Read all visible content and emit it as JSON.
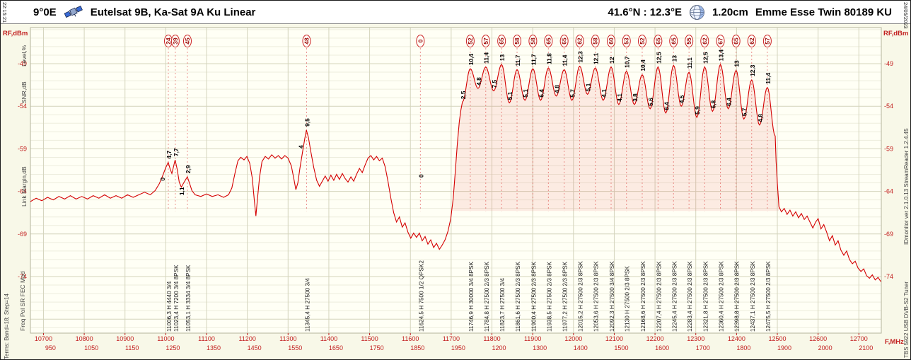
{
  "header": {
    "time": "22:15:21",
    "date": "24/05/2023",
    "orbital_position": "9°0E",
    "satellite_name": "Eutelsat 9B, Ka-Sat 9A Ku Linear",
    "site_coords": "41.6°N : 12.3°E",
    "dish_size": "1.20cm",
    "lnb_name": "Emme Esse Twin 80189 KU"
  },
  "side_labels": {
    "level_label": "Level,%",
    "snr_label": "SNR,dB",
    "margin_label": "Link Margin,dB",
    "row_legend": "Freq   Pol   SR   FEC   Mod",
    "terms": "Terms: Band=18; Step=14",
    "tuner": "TBS 5922 USB DVB-S2 Tuner",
    "app_version": "IDmonitor  ver 2.1.0.13   StreamReader 1.2.4.45"
  },
  "chart_data": {
    "type": "line",
    "title": "Satellite RF spectrum scan",
    "xlabel": "F,MHz",
    "ylabel": "RF,dBm",
    "xlim": [
      10668,
      12755
    ],
    "ylim": [
      -80,
      -45
    ],
    "y_ticks": [
      -49,
      -54,
      -59,
      -64,
      -69,
      -74
    ],
    "x_ticks_freq": [
      10700,
      10800,
      10900,
      11000,
      11100,
      11200,
      11300,
      11400,
      11500,
      11600,
      11700,
      11800,
      11900,
      12000,
      12100,
      12200,
      12300,
      12400,
      12500,
      12600,
      12700
    ],
    "x_ticks_if": [
      950,
      1050,
      1150,
      1250,
      1350,
      1450,
      1550,
      1650,
      1750,
      1850,
      1950,
      1200,
      1300,
      1400,
      1500,
      1600,
      1700,
      1800,
      1900,
      2000,
      2100
    ],
    "band_right_valley_dbm": -57.5,
    "baseline_trace": [
      [
        10668,
        -65.2
      ],
      [
        10682,
        -64.8
      ],
      [
        10696,
        -65.1
      ],
      [
        10710,
        -64.7
      ],
      [
        10724,
        -65.0
      ],
      [
        10738,
        -64.6
      ],
      [
        10752,
        -64.9
      ],
      [
        10766,
        -64.5
      ],
      [
        10780,
        -64.9
      ],
      [
        10794,
        -64.6
      ],
      [
        10808,
        -64.9
      ],
      [
        10822,
        -64.5
      ],
      [
        10836,
        -64.8
      ],
      [
        10850,
        -64.4
      ],
      [
        10864,
        -64.8
      ],
      [
        10878,
        -64.5
      ],
      [
        10892,
        -64.8
      ],
      [
        10906,
        -64.4
      ],
      [
        10920,
        -64.7
      ],
      [
        10934,
        -64.4
      ],
      [
        10948,
        -64.1
      ],
      [
        10962,
        -64.4
      ],
      [
        10974,
        -63.9
      ],
      [
        10984,
        -63.1
      ],
      [
        10993,
        -62.1
      ],
      [
        11000,
        -61.2
      ],
      [
        11006,
        -60.6
      ],
      [
        11011,
        -61.4
      ],
      [
        11015,
        -61.9
      ],
      [
        11019,
        -61.1
      ],
      [
        11023,
        -60.3
      ],
      [
        11028,
        -61.4
      ],
      [
        11033,
        -62.9
      ],
      [
        11038,
        -63.5
      ],
      [
        11044,
        -63.0
      ],
      [
        11049,
        -62.6
      ],
      [
        11053,
        -62.3
      ],
      [
        11058,
        -63.0
      ],
      [
        11064,
        -63.9
      ],
      [
        11072,
        -64.4
      ],
      [
        11086,
        -64.6
      ],
      [
        11100,
        -64.3
      ],
      [
        11114,
        -64.6
      ],
      [
        11128,
        -64.4
      ],
      [
        11142,
        -64.7
      ],
      [
        11154,
        -64.4
      ],
      [
        11162,
        -63.6
      ],
      [
        11170,
        -61.8
      ],
      [
        11177,
        -60.4
      ],
      [
        11184,
        -60.0
      ],
      [
        11192,
        -60.3
      ],
      [
        11199,
        -59.9
      ],
      [
        11206,
        -60.7
      ],
      [
        11212,
        -62.4
      ],
      [
        11217,
        -65.0
      ],
      [
        11221,
        -66.9
      ],
      [
        11225,
        -64.8
      ],
      [
        11230,
        -62.3
      ],
      [
        11236,
        -60.5
      ],
      [
        11244,
        -59.9
      ],
      [
        11252,
        -60.2
      ],
      [
        11260,
        -59.7
      ],
      [
        11268,
        -60.1
      ],
      [
        11276,
        -59.8
      ],
      [
        11284,
        -60.2
      ],
      [
        11292,
        -59.8
      ],
      [
        11300,
        -60.1
      ],
      [
        11308,
        -61.0
      ],
      [
        11314,
        -62.5
      ],
      [
        11319,
        -63.8
      ],
      [
        11324,
        -63.0
      ],
      [
        11329,
        -61.3
      ],
      [
        11335,
        -59.5
      ],
      [
        11341,
        -57.8
      ],
      [
        11345,
        -56.8
      ],
      [
        11350,
        -57.7
      ],
      [
        11356,
        -59.4
      ],
      [
        11363,
        -61.2
      ],
      [
        11370,
        -62.7
      ],
      [
        11377,
        -63.4
      ],
      [
        11384,
        -62.8
      ],
      [
        11391,
        -62.2
      ],
      [
        11398,
        -62.8
      ],
      [
        11405,
        -62.1
      ],
      [
        11412,
        -62.7
      ],
      [
        11419,
        -62.0
      ],
      [
        11426,
        -62.6
      ],
      [
        11433,
        -61.9
      ],
      [
        11440,
        -62.5
      ],
      [
        11447,
        -62.9
      ],
      [
        11454,
        -62.3
      ],
      [
        11461,
        -62.8
      ],
      [
        11468,
        -62.0
      ],
      [
        11475,
        -61.3
      ],
      [
        11482,
        -61.8
      ],
      [
        11489,
        -60.9
      ],
      [
        11496,
        -60.1
      ],
      [
        11503,
        -59.8
      ],
      [
        11510,
        -60.3
      ],
      [
        11517,
        -59.9
      ],
      [
        11524,
        -60.4
      ],
      [
        11531,
        -60.1
      ],
      [
        11538,
        -61.1
      ],
      [
        11545,
        -62.8
      ],
      [
        11552,
        -64.8
      ],
      [
        11559,
        -66.5
      ],
      [
        11566,
        -67.6
      ],
      [
        11573,
        -67.0
      ],
      [
        11580,
        -68.2
      ],
      [
        11587,
        -67.7
      ],
      [
        11594,
        -68.8
      ],
      [
        11601,
        -69.5
      ],
      [
        11608,
        -68.9
      ],
      [
        11615,
        -69.4
      ],
      [
        11622,
        -68.9
      ],
      [
        11629,
        -69.8
      ],
      [
        11636,
        -69.3
      ],
      [
        11643,
        -70.2
      ],
      [
        11650,
        -69.7
      ],
      [
        11657,
        -70.6
      ],
      [
        11664,
        -70.1
      ],
      [
        11671,
        -70.8
      ],
      [
        11678,
        -70.3
      ],
      [
        11685,
        -69.7
      ],
      [
        11692,
        -68.7
      ],
      [
        11699,
        -67.2
      ],
      [
        11705,
        -64.8
      ],
      [
        11710,
        -61.8
      ],
      [
        11715,
        -58.5
      ],
      [
        11720,
        -55.8
      ],
      [
        11724,
        -54.4
      ]
    ],
    "tail_trace": [
      [
        12497,
        -60.5
      ],
      [
        12500,
        -63.0
      ],
      [
        12504,
        -65.8
      ],
      [
        12510,
        -66.4
      ],
      [
        12517,
        -66.0
      ],
      [
        12524,
        -66.7
      ],
      [
        12531,
        -66.2
      ],
      [
        12538,
        -66.9
      ],
      [
        12545,
        -66.4
      ],
      [
        12552,
        -67.1
      ],
      [
        12559,
        -66.6
      ],
      [
        12566,
        -67.3
      ],
      [
        12573,
        -66.9
      ],
      [
        12580,
        -67.6
      ],
      [
        12587,
        -68.3
      ],
      [
        12594,
        -67.6
      ],
      [
        12600,
        -67.2
      ],
      [
        12607,
        -68.4
      ],
      [
        12614,
        -67.9
      ],
      [
        12621,
        -68.8
      ],
      [
        12628,
        -69.8
      ],
      [
        12635,
        -69.2
      ],
      [
        12642,
        -70.3
      ],
      [
        12649,
        -69.8
      ],
      [
        12656,
        -70.9
      ],
      [
        12663,
        -71.5
      ],
      [
        12670,
        -71.0
      ],
      [
        12677,
        -72.0
      ],
      [
        12684,
        -72.5
      ],
      [
        12691,
        -72.2
      ],
      [
        12698,
        -73.0
      ],
      [
        12705,
        -73.4
      ],
      [
        12712,
        -73.1
      ],
      [
        12719,
        -73.9
      ],
      [
        12726,
        -74.2
      ],
      [
        12733,
        -73.8
      ],
      [
        12740,
        -74.4
      ],
      [
        12747,
        -74.1
      ],
      [
        12754,
        -74.6
      ]
    ],
    "low_band_signals": [
      {
        "freq_mhz": 11006.3,
        "freq_label": "11006,3",
        "pol": "H",
        "sr": "4440",
        "fec": "3/4",
        "mod": "",
        "level_pct": 24,
        "snr_db": "4,7",
        "margin_db": "0",
        "peak_dbm": -60.6
      },
      {
        "freq_mhz": 11023.4,
        "freq_label": "11023,4",
        "pol": "H",
        "sr": "7200",
        "fec": "3/4",
        "mod": "8PSK",
        "level_pct": 39,
        "snr_db": "7,7",
        "margin_db": "",
        "peak_dbm": -60.3
      },
      {
        "freq_mhz": 11053.1,
        "freq_label": "11053,1",
        "pol": "H",
        "sr": "3334",
        "fec": "3/4",
        "mod": "8PSK",
        "level_pct": 45,
        "snr_db": "2,9",
        "margin_db": "1,1",
        "peak_dbm": -62.3
      },
      {
        "freq_mhz": 11345.4,
        "freq_label": "11345,4",
        "pol": "H",
        "sr": "27500",
        "fec": "3/4",
        "mod": "",
        "level_pct": 48,
        "snr_db": "9,5",
        "margin_db": "4",
        "peak_dbm": -56.8
      },
      {
        "freq_mhz": 11624.5,
        "freq_label": "11624,5",
        "pol": "H",
        "sr": "7500",
        "fec": "1/2",
        "mod": "QPSK2",
        "level_pct": 0,
        "snr_db": "0",
        "margin_db": "",
        "peak_dbm": -69.0,
        "label_dbm": -62.8
      }
    ],
    "carriers": [
      {
        "freq_mhz": 11746.9,
        "freq_label": "11746,9",
        "pol": "H",
        "sr": "30000",
        "fec": "3/4",
        "mod": "8PSK",
        "level_pct": 52,
        "snr_db": "10,4",
        "gap_snr_db": "2,5",
        "peak_dbm": -49.6,
        "valley_left_dbm": -53.5
      },
      {
        "freq_mhz": 11784.8,
        "freq_label": "11784,8",
        "pol": "H",
        "sr": "27500",
        "fec": "2/3",
        "mod": "8PSK",
        "level_pct": 57,
        "snr_db": "11,4",
        "gap_snr_db": "4,8",
        "peak_dbm": -49.4,
        "valley_left_dbm": -51.9
      },
      {
        "freq_mhz": 11823.7,
        "freq_label": "11823,7",
        "pol": "H",
        "sr": "27500",
        "fec": "3/4",
        "mod": "",
        "level_pct": 65,
        "snr_db": "13",
        "gap_snr_db": "7,5",
        "peak_dbm": -49.1,
        "valley_left_dbm": -52.2
      },
      {
        "freq_mhz": 11861.6,
        "freq_label": "11861,6",
        "pol": "H",
        "sr": "27500",
        "fec": "2/3",
        "mod": "8PSK",
        "level_pct": 58,
        "snr_db": "11,7",
        "gap_snr_db": "5,1",
        "peak_dbm": -49.7,
        "valley_left_dbm": -53.6
      },
      {
        "freq_mhz": 11900.4,
        "freq_label": "11900,4",
        "pol": "H",
        "sr": "27500",
        "fec": "2/3",
        "mod": "8PSK",
        "level_pct": 58,
        "snr_db": "11,7",
        "gap_snr_db": "5,1",
        "peak_dbm": -49.6,
        "valley_left_dbm": -53.3
      },
      {
        "freq_mhz": 11938.5,
        "freq_label": "11938,5",
        "pol": "H",
        "sr": "27500",
        "fec": "2/3",
        "mod": "8PSK",
        "level_pct": 65,
        "snr_db": "11,8",
        "gap_snr_db": "6,4",
        "peak_dbm": -49.5,
        "valley_left_dbm": -53.3
      },
      {
        "freq_mhz": 11977.2,
        "freq_label": "11977,2",
        "pol": "H",
        "sr": "27500",
        "fec": "2/3",
        "mod": "8PSK",
        "level_pct": 65,
        "snr_db": "11,4",
        "gap_snr_db": "4,8",
        "peak_dbm": -49.7,
        "valley_left_dbm": -52.8
      },
      {
        "freq_mhz": 12015.2,
        "freq_label": "12015,2",
        "pol": "H",
        "sr": "27500",
        "fec": "2/3",
        "mod": "8PSK",
        "level_pct": 62,
        "snr_db": "12,3",
        "gap_snr_db": "5,7",
        "peak_dbm": -49.3,
        "valley_left_dbm": -53.3
      },
      {
        "freq_mhz": 12053.6,
        "freq_label": "12053,6",
        "pol": "H",
        "sr": "27500",
        "fec": "2/3",
        "mod": "8PSK",
        "level_pct": 58,
        "snr_db": "12,1",
        "gap_snr_db": "5,1",
        "peak_dbm": -49.5,
        "valley_left_dbm": -52.6
      },
      {
        "freq_mhz": 12092.3,
        "freq_label": "12092,3",
        "pol": "H",
        "sr": "27500",
        "fec": "3/4",
        "mod": "8PSK",
        "level_pct": 60,
        "snr_db": "12",
        "gap_snr_db": "4,1",
        "peak_dbm": -49.4,
        "valley_left_dbm": -53.3
      },
      {
        "freq_mhz": 12130,
        "freq_label": "12130",
        "pol": "H",
        "sr": "27500",
        "fec": "2/3",
        "mod": "8PSK",
        "level_pct": 53,
        "snr_db": "10,7",
        "gap_snr_db": "4,1",
        "peak_dbm": -49.9,
        "valley_left_dbm": -53.8
      },
      {
        "freq_mhz": 12168.6,
        "freq_label": "12168,6",
        "pol": "H",
        "sr": "27500",
        "fec": "2/3",
        "mod": "8PSK",
        "level_pct": 52,
        "snr_db": "10,4",
        "gap_snr_db": "3,8",
        "peak_dbm": -50.3,
        "valley_left_dbm": -53.8
      },
      {
        "freq_mhz": 12207.4,
        "freq_label": "12207,4",
        "pol": "H",
        "sr": "27500",
        "fec": "2/3",
        "mod": "8PSK",
        "level_pct": 65,
        "snr_db": "12,5",
        "gap_snr_db": "5,6",
        "peak_dbm": -49.4,
        "valley_left_dbm": -54.3
      },
      {
        "freq_mhz": 12245.4,
        "freq_label": "12245,4",
        "pol": "H",
        "sr": "27500",
        "fec": "2/3",
        "mod": "8PSK",
        "level_pct": 65,
        "snr_db": "13",
        "gap_snr_db": "6,4",
        "peak_dbm": -49.2,
        "valley_left_dbm": -54.8
      },
      {
        "freq_mhz": 12283.4,
        "freq_label": "12283,4",
        "pol": "H",
        "sr": "27500",
        "fec": "2/3",
        "mod": "8PSK",
        "level_pct": 55,
        "snr_db": "11,1",
        "gap_snr_db": "4,5",
        "peak_dbm": -50.0,
        "valley_left_dbm": -54.0
      },
      {
        "freq_mhz": 12321.8,
        "freq_label": "12321,8",
        "pol": "H",
        "sr": "27500",
        "fec": "2/3",
        "mod": "8PSK",
        "level_pct": 62,
        "snr_db": "12,5",
        "gap_snr_db": "5,9",
        "peak_dbm": -49.4,
        "valley_left_dbm": -55.3
      },
      {
        "freq_mhz": 12360.4,
        "freq_label": "12360,4",
        "pol": "H",
        "sr": "27500",
        "fec": "2/3",
        "mod": "8PSK",
        "level_pct": 67,
        "snr_db": "13,4",
        "gap_snr_db": "6,8",
        "peak_dbm": -49.1,
        "valley_left_dbm": -54.6
      },
      {
        "freq_mhz": 12398.8,
        "freq_label": "12398,8",
        "pol": "H",
        "sr": "27500",
        "fec": "2/3",
        "mod": "8PSK",
        "level_pct": 65,
        "snr_db": "13",
        "gap_snr_db": "6,4",
        "peak_dbm": -49.8,
        "valley_left_dbm": -54.3
      },
      {
        "freq_mhz": 12437.1,
        "freq_label": "12437,1",
        "pol": "H",
        "sr": "27500",
        "fec": "2/3",
        "mod": "8PSK",
        "level_pct": 62,
        "snr_db": "12,3",
        "gap_snr_db": "5,7",
        "peak_dbm": -50.9,
        "valley_left_dbm": -55.5
      },
      {
        "freq_mhz": 12475.5,
        "freq_label": "12475,5",
        "pol": "H",
        "sr": "27500",
        "fec": "2/3",
        "mod": "8PSK",
        "level_pct": 57,
        "snr_db": "11,4",
        "gap_snr_db": "4,8",
        "peak_dbm": -51.8,
        "valley_left_dbm": -56.2
      }
    ]
  }
}
